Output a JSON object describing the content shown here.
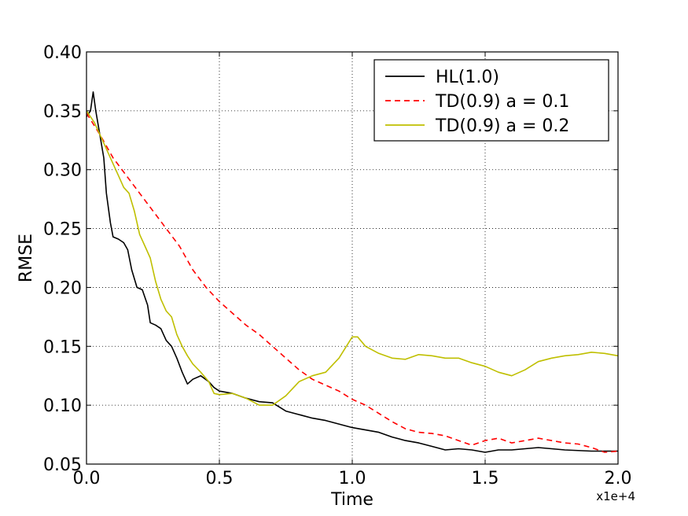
{
  "chart_data": {
    "type": "line",
    "xlabel": "Time",
    "ylabel": "RMSE",
    "x_offset_label": "x1e+4",
    "xlim": [
      0,
      2.0
    ],
    "ylim": [
      0.05,
      0.4
    ],
    "xticks": [
      0.0,
      0.5,
      1.0,
      1.5,
      2.0
    ],
    "xtick_labels": [
      "0.0",
      "0.5",
      "1.0",
      "1.5",
      "2.0"
    ],
    "yticks": [
      0.05,
      0.1,
      0.15,
      0.2,
      0.25,
      0.3,
      0.35,
      0.4
    ],
    "ytick_labels": [
      "0.05",
      "0.10",
      "0.15",
      "0.20",
      "0.25",
      "0.30",
      "0.35",
      "0.40"
    ],
    "grid": true,
    "legend_position": "top-right",
    "series": [
      {
        "name": "HL(1.0)",
        "color": "#000000",
        "style": "solid",
        "points": [
          [
            0.0,
            0.345
          ],
          [
            0.015,
            0.35
          ],
          [
            0.025,
            0.366
          ],
          [
            0.035,
            0.35
          ],
          [
            0.05,
            0.33
          ],
          [
            0.065,
            0.31
          ],
          [
            0.075,
            0.28
          ],
          [
            0.09,
            0.255
          ],
          [
            0.1,
            0.243
          ],
          [
            0.12,
            0.241
          ],
          [
            0.14,
            0.238
          ],
          [
            0.155,
            0.232
          ],
          [
            0.17,
            0.215
          ],
          [
            0.19,
            0.2
          ],
          [
            0.21,
            0.198
          ],
          [
            0.23,
            0.185
          ],
          [
            0.24,
            0.17
          ],
          [
            0.26,
            0.168
          ],
          [
            0.28,
            0.165
          ],
          [
            0.3,
            0.155
          ],
          [
            0.32,
            0.15
          ],
          [
            0.34,
            0.14
          ],
          [
            0.36,
            0.128
          ],
          [
            0.38,
            0.118
          ],
          [
            0.4,
            0.122
          ],
          [
            0.43,
            0.125
          ],
          [
            0.46,
            0.12
          ],
          [
            0.48,
            0.115
          ],
          [
            0.5,
            0.112
          ],
          [
            0.55,
            0.11
          ],
          [
            0.6,
            0.106
          ],
          [
            0.65,
            0.103
          ],
          [
            0.7,
            0.102
          ],
          [
            0.75,
            0.095
          ],
          [
            0.8,
            0.092
          ],
          [
            0.85,
            0.089
          ],
          [
            0.9,
            0.087
          ],
          [
            0.95,
            0.084
          ],
          [
            1.0,
            0.081
          ],
          [
            1.05,
            0.079
          ],
          [
            1.1,
            0.077
          ],
          [
            1.15,
            0.073
          ],
          [
            1.2,
            0.07
          ],
          [
            1.25,
            0.068
          ],
          [
            1.3,
            0.065
          ],
          [
            1.35,
            0.062
          ],
          [
            1.4,
            0.063
          ],
          [
            1.45,
            0.062
          ],
          [
            1.5,
            0.06
          ],
          [
            1.55,
            0.062
          ],
          [
            1.6,
            0.062
          ],
          [
            1.7,
            0.064
          ],
          [
            1.8,
            0.062
          ],
          [
            1.9,
            0.061
          ],
          [
            2.0,
            0.061
          ]
        ]
      },
      {
        "name": "TD(0.9) a = 0.1",
        "color": "#ff0000",
        "style": "dashed",
        "points": [
          [
            0.0,
            0.348
          ],
          [
            0.05,
            0.33
          ],
          [
            0.1,
            0.31
          ],
          [
            0.15,
            0.295
          ],
          [
            0.2,
            0.28
          ],
          [
            0.25,
            0.265
          ],
          [
            0.3,
            0.25
          ],
          [
            0.35,
            0.235
          ],
          [
            0.4,
            0.215
          ],
          [
            0.45,
            0.2
          ],
          [
            0.5,
            0.188
          ],
          [
            0.55,
            0.178
          ],
          [
            0.6,
            0.168
          ],
          [
            0.65,
            0.16
          ],
          [
            0.7,
            0.15
          ],
          [
            0.75,
            0.14
          ],
          [
            0.8,
            0.13
          ],
          [
            0.85,
            0.122
          ],
          [
            0.9,
            0.117
          ],
          [
            0.95,
            0.112
          ],
          [
            1.0,
            0.105
          ],
          [
            1.05,
            0.1
          ],
          [
            1.1,
            0.093
          ],
          [
            1.15,
            0.086
          ],
          [
            1.2,
            0.08
          ],
          [
            1.25,
            0.077
          ],
          [
            1.3,
            0.076
          ],
          [
            1.35,
            0.074
          ],
          [
            1.4,
            0.07
          ],
          [
            1.45,
            0.066
          ],
          [
            1.5,
            0.07
          ],
          [
            1.55,
            0.072
          ],
          [
            1.6,
            0.068
          ],
          [
            1.65,
            0.07
          ],
          [
            1.7,
            0.072
          ],
          [
            1.75,
            0.07
          ],
          [
            1.8,
            0.068
          ],
          [
            1.85,
            0.067
          ],
          [
            1.9,
            0.064
          ],
          [
            1.95,
            0.06
          ],
          [
            2.0,
            0.061
          ]
        ]
      },
      {
        "name": "TD(0.9) a = 0.2",
        "color": "#bfbf00",
        "style": "solid",
        "points": [
          [
            0.0,
            0.35
          ],
          [
            0.03,
            0.34
          ],
          [
            0.06,
            0.325
          ],
          [
            0.09,
            0.31
          ],
          [
            0.12,
            0.295
          ],
          [
            0.14,
            0.285
          ],
          [
            0.16,
            0.28
          ],
          [
            0.18,
            0.265
          ],
          [
            0.2,
            0.245
          ],
          [
            0.22,
            0.235
          ],
          [
            0.24,
            0.225
          ],
          [
            0.26,
            0.205
          ],
          [
            0.28,
            0.19
          ],
          [
            0.3,
            0.18
          ],
          [
            0.32,
            0.175
          ],
          [
            0.34,
            0.16
          ],
          [
            0.36,
            0.15
          ],
          [
            0.38,
            0.142
          ],
          [
            0.4,
            0.135
          ],
          [
            0.43,
            0.128
          ],
          [
            0.46,
            0.12
          ],
          [
            0.48,
            0.11
          ],
          [
            0.5,
            0.109
          ],
          [
            0.55,
            0.11
          ],
          [
            0.6,
            0.106
          ],
          [
            0.65,
            0.1
          ],
          [
            0.7,
            0.1
          ],
          [
            0.75,
            0.108
          ],
          [
            0.8,
            0.12
          ],
          [
            0.85,
            0.125
          ],
          [
            0.9,
            0.128
          ],
          [
            0.95,
            0.14
          ],
          [
            1.0,
            0.158
          ],
          [
            1.02,
            0.158
          ],
          [
            1.05,
            0.15
          ],
          [
            1.1,
            0.144
          ],
          [
            1.15,
            0.14
          ],
          [
            1.2,
            0.139
          ],
          [
            1.25,
            0.143
          ],
          [
            1.3,
            0.142
          ],
          [
            1.35,
            0.14
          ],
          [
            1.4,
            0.14
          ],
          [
            1.45,
            0.136
          ],
          [
            1.5,
            0.133
          ],
          [
            1.55,
            0.128
          ],
          [
            1.6,
            0.125
          ],
          [
            1.65,
            0.13
          ],
          [
            1.7,
            0.137
          ],
          [
            1.75,
            0.14
          ],
          [
            1.8,
            0.142
          ],
          [
            1.85,
            0.143
          ],
          [
            1.9,
            0.145
          ],
          [
            1.95,
            0.144
          ],
          [
            2.0,
            0.142
          ]
        ]
      }
    ]
  }
}
